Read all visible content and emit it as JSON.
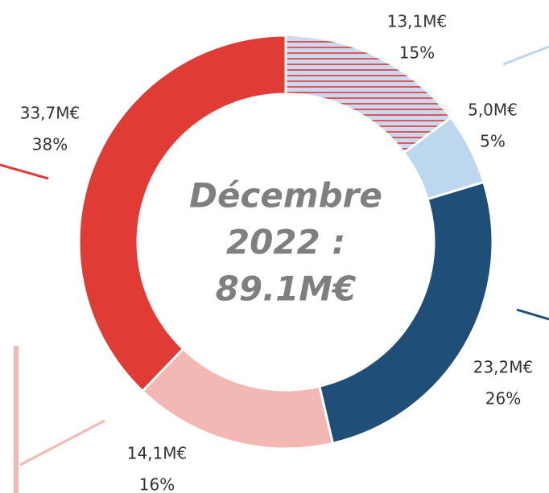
{
  "chart_data": {
    "type": "donut",
    "center_text": [
      "Décembre",
      "2022 :",
      "89.1M€"
    ],
    "values": [
      13.1,
      5.0,
      23.2,
      14.1,
      33.7
    ],
    "value_labels": [
      "13,1M€",
      "5,0M€",
      "23,2M€",
      "14,1M€",
      "33,7M€"
    ],
    "shares": [
      15,
      5,
      26,
      16,
      38
    ],
    "share_labels": [
      "15%",
      "5%",
      "26%",
      "16%",
      "38%"
    ],
    "colors": [
      "hatched",
      "#bdd7ee",
      "#1f4e79",
      "#f4b8b4",
      "#e03c35"
    ]
  }
}
